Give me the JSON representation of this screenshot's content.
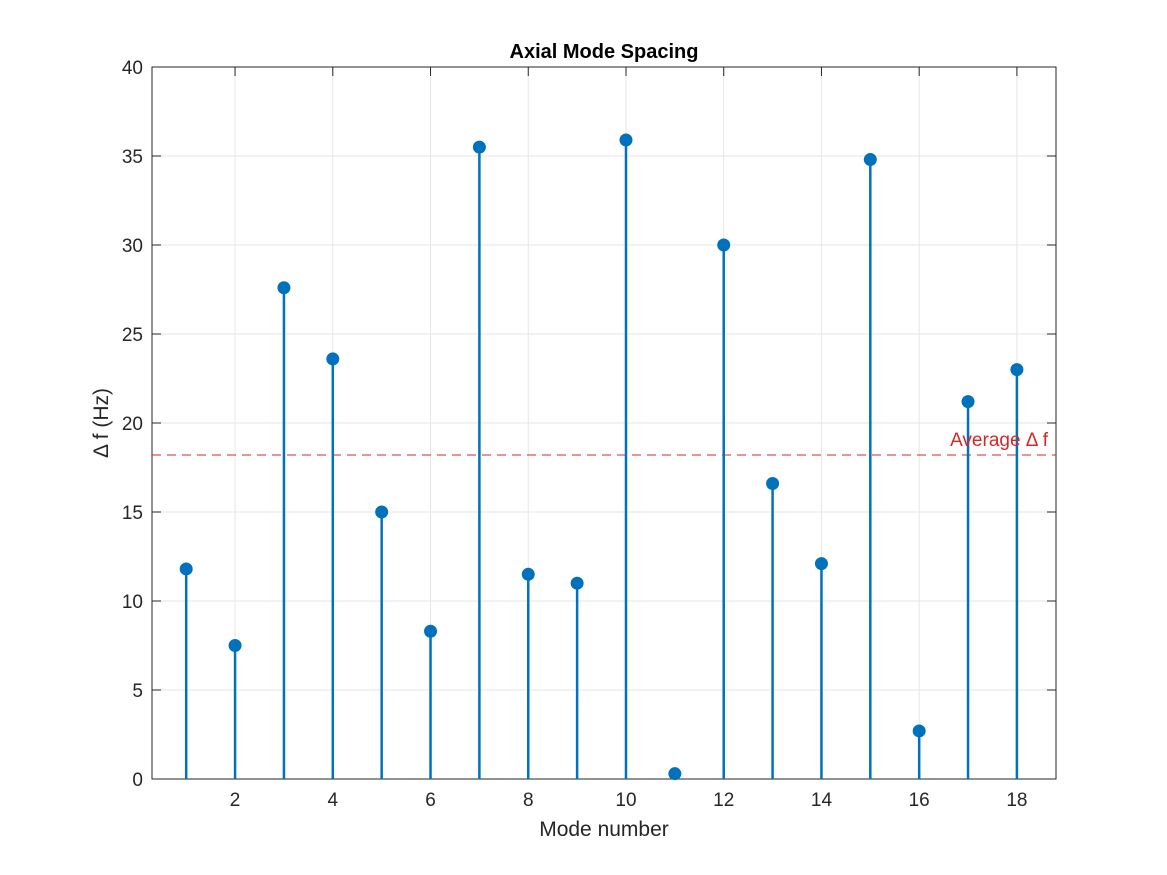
{
  "chart_data": {
    "type": "stem",
    "title": "Axial Mode Spacing",
    "xlabel": "Mode number",
    "ylabel": "Δ f (Hz)",
    "xlim": [
      0.3,
      18.8
    ],
    "ylim": [
      0,
      40
    ],
    "xticks": [
      2,
      4,
      6,
      8,
      10,
      12,
      14,
      16,
      18
    ],
    "yticks": [
      0,
      5,
      10,
      15,
      20,
      25,
      30,
      35,
      40
    ],
    "grid": true,
    "series": [
      {
        "x": [
          1,
          2,
          3,
          4,
          5,
          6,
          7,
          8,
          9,
          10,
          11,
          12,
          13,
          14,
          15,
          16,
          17,
          18
        ],
        "values": [
          11.8,
          7.5,
          27.6,
          23.6,
          15.0,
          8.3,
          35.5,
          11.5,
          11.0,
          35.9,
          0.3,
          30.0,
          16.6,
          12.1,
          34.8,
          2.7,
          21.2,
          23.0
        ],
        "color": "#0072BD"
      }
    ],
    "reference_line": {
      "value": 18.2,
      "label": "Average Δ f",
      "color": "#D62728",
      "style": "dashed"
    }
  }
}
